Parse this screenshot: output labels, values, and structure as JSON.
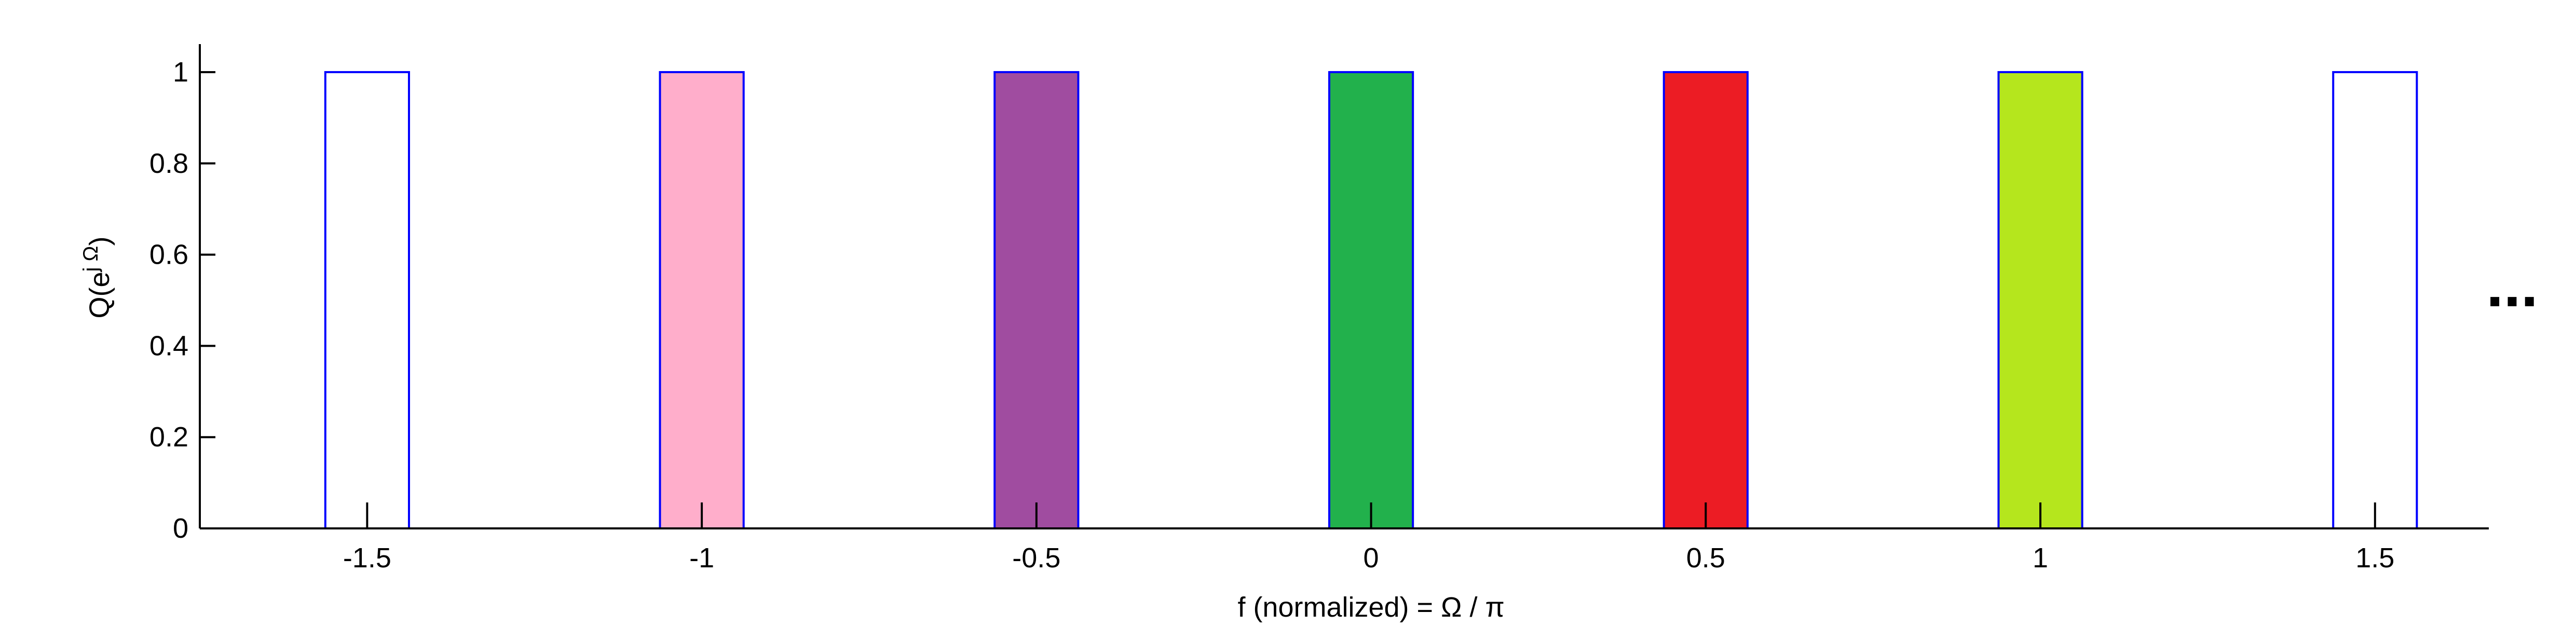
{
  "chart_data": {
    "type": "bar",
    "xlabel": "f (normalized) = Ω  / π",
    "ylabel": "Q(e^{jΩ})",
    "ylabel_parts": {
      "base": "Q(e",
      "sup": "j Ω",
      "close": ")"
    },
    "xlim": [
      -1.75,
      1.67
    ],
    "ylim": [
      0,
      1.05
    ],
    "xticks": [
      -1.5,
      -1,
      -0.5,
      0,
      0.5,
      1,
      1.5
    ],
    "xtick_labels": [
      "-1.5",
      "-1",
      "-0.5",
      "0",
      "0.5",
      "1",
      "1.5"
    ],
    "yticks": [
      0,
      0.2,
      0.4,
      0.6,
      0.8,
      1
    ],
    "ytick_labels": [
      "0",
      "0.2",
      "0.4",
      "0.6",
      "0.8",
      "1"
    ],
    "bar_width": 0.125,
    "bars": [
      {
        "x": -1.5,
        "value": 1,
        "fill": "#ffffff"
      },
      {
        "x": -1.0,
        "value": 1,
        "fill": "#ffaecb"
      },
      {
        "x": -0.5,
        "value": 1,
        "fill": "#a04ca0"
      },
      {
        "x": 0.0,
        "value": 1,
        "fill": "#22b14c"
      },
      {
        "x": 0.5,
        "value": 1,
        "fill": "#ec1c24"
      },
      {
        "x": 1.0,
        "value": 1,
        "fill": "#b5e61d"
      },
      {
        "x": 1.5,
        "value": 1,
        "fill": "#ffffff"
      }
    ],
    "bar_edge_color": "#0000ff",
    "grid": false,
    "ellipsis": "..."
  }
}
